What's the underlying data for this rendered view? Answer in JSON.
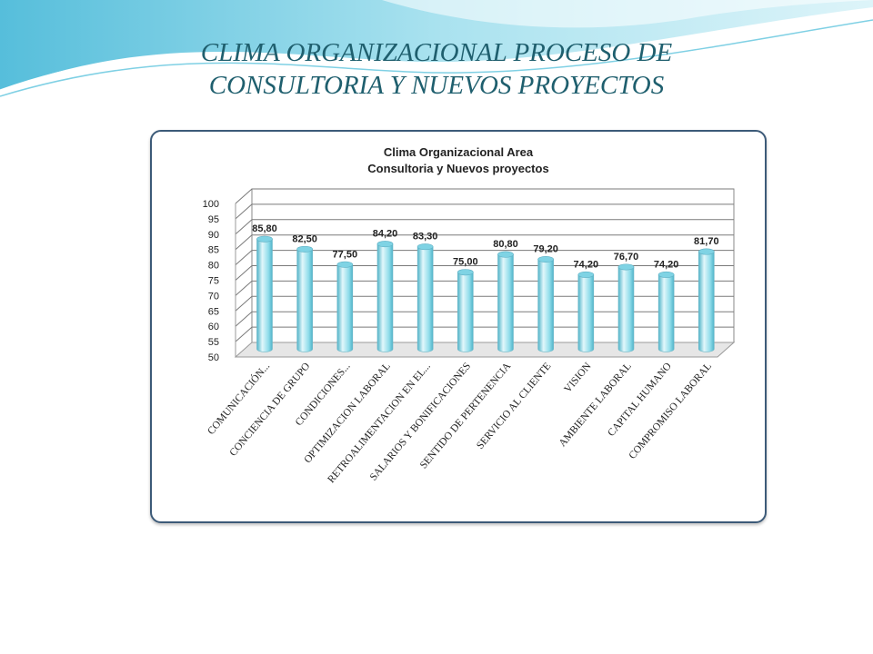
{
  "slide": {
    "title_line1": "CLIMA ORGANIZACIONAL PROCESO DE",
    "title_line2": "CONSULTORIA Y NUEVOS PROYECTOS"
  },
  "colors": {
    "title": "#1f5f6e",
    "bar_light": "#e2f7fb",
    "bar_mid": "#8fdcea",
    "bar_dark": "#4fb3c8",
    "wave": "#5bc3dd",
    "frame": "#3c5a78"
  },
  "chart_data": {
    "type": "bar",
    "title_line1": "Clima Organizacional Area",
    "title_line2": "Consultoria y Nuevos proyectos",
    "categories": [
      "COMUNICACIÓN...",
      "CONCIENCIA DE GRUPO",
      "CONDICIONES...",
      "OPTIMIZACION LABORAL",
      "RETROALIMENTACION EN EL...",
      "SALARIOS Y BONIFICACIONES",
      "SENTIDO DE PERTENENCIA",
      "SERVICIO AL CLIENTE",
      "VISION",
      "AMBIENTE LABORAL",
      "CAPITAL HUMANO",
      "COMPROMISO LABORAL"
    ],
    "values": [
      85.8,
      82.5,
      77.5,
      84.2,
      83.3,
      75.0,
      80.8,
      79.2,
      74.2,
      76.7,
      74.2,
      81.7
    ],
    "value_labels": [
      "85,80",
      "82,50",
      "77,50",
      "84,20",
      "83,30",
      "75,00",
      "80,80",
      "79,20",
      "74,20",
      "76,70",
      "74,20",
      "81,70"
    ],
    "yticks": [
      "50",
      "55",
      "60",
      "65",
      "70",
      "75",
      "80",
      "85",
      "90",
      "95",
      "100"
    ],
    "ylim": [
      50,
      100
    ],
    "grid": true,
    "legend": "none",
    "style": "3d-cylinder"
  }
}
